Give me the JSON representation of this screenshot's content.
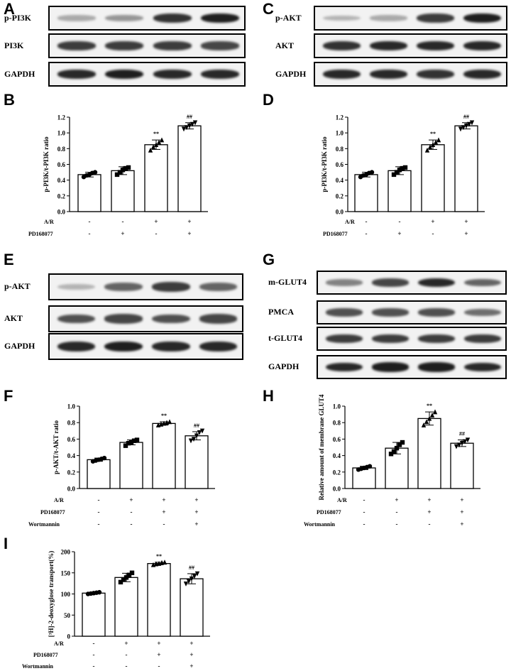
{
  "panel_labels": [
    "A",
    "B",
    "C",
    "D",
    "E",
    "F",
    "G",
    "H",
    "I"
  ],
  "blots": [
    {
      "panel": "A",
      "rows": [
        {
          "label": "p-PI3K",
          "intensity": [
            0.25,
            0.35,
            0.85,
            0.95
          ]
        },
        {
          "label": "PI3K",
          "intensity": [
            0.8,
            0.8,
            0.8,
            0.75
          ]
        },
        {
          "label": "GAPDH",
          "intensity": [
            0.9,
            0.95,
            0.9,
            0.9
          ]
        }
      ]
    },
    {
      "panel": "C",
      "rows": [
        {
          "label": "p-AKT",
          "intensity": [
            0.2,
            0.25,
            0.8,
            0.95
          ]
        },
        {
          "label": "AKT",
          "intensity": [
            0.85,
            0.9,
            0.9,
            0.9
          ]
        },
        {
          "label": "GAPDH",
          "intensity": [
            0.9,
            0.9,
            0.85,
            0.9
          ]
        }
      ]
    },
    {
      "panel": "E",
      "rows": [
        {
          "label": "p-AKT",
          "intensity": [
            0.2,
            0.6,
            0.8,
            0.6
          ]
        },
        {
          "label": "AKT",
          "intensity": [
            0.7,
            0.75,
            0.7,
            0.75
          ]
        },
        {
          "label": "GAPDH",
          "intensity": [
            0.9,
            0.95,
            0.9,
            0.9
          ]
        }
      ]
    },
    {
      "panel": "G",
      "rows": [
        {
          "label": "m-GLUT4",
          "intensity": [
            0.45,
            0.75,
            0.9,
            0.6
          ]
        },
        {
          "label": "PMCA",
          "intensity": [
            0.7,
            0.7,
            0.7,
            0.55
          ]
        },
        {
          "label": "t-GLUT4",
          "intensity": [
            0.8,
            0.8,
            0.8,
            0.8
          ]
        },
        {
          "label": "GAPDH",
          "intensity": [
            0.9,
            0.95,
            0.95,
            0.9
          ]
        }
      ]
    }
  ],
  "chart_data": [
    {
      "panel": "B",
      "type": "bar",
      "ylabel": "p-PI3K/t-PI3K ratio",
      "yticks": [
        "0.0",
        "0.2",
        "0.4",
        "0.6",
        "0.8",
        "1.0",
        "1.2"
      ],
      "ylim": [
        0,
        1.2
      ],
      "values": [
        0.47,
        0.52,
        0.85,
        1.09
      ],
      "errors": [
        0.03,
        0.05,
        0.06,
        0.04
      ],
      "points": [
        [
          0.44,
          0.46,
          0.47,
          0.49,
          0.5
        ],
        [
          0.47,
          0.5,
          0.53,
          0.55,
          0.56
        ],
        [
          0.78,
          0.82,
          0.85,
          0.88,
          0.91
        ],
        [
          1.05,
          1.07,
          1.09,
          1.11,
          1.13
        ]
      ],
      "markers": [
        "circle",
        "square",
        "triangle",
        "triangle-down"
      ],
      "annotations": [
        "",
        "",
        "**",
        "##"
      ],
      "conditions": [
        {
          "label": "A/R",
          "values": [
            "-",
            "-",
            "+",
            "+"
          ]
        },
        {
          "label": "PD168077",
          "values": [
            "-",
            "+",
            "-",
            "+"
          ]
        }
      ]
    },
    {
      "panel": "D",
      "type": "bar",
      "ylabel": "p-PI3K/t-PI3K ratio",
      "yticks": [
        "0.0",
        "0.2",
        "0.4",
        "0.6",
        "0.8",
        "1.0",
        "1.2"
      ],
      "ylim": [
        0,
        1.2
      ],
      "values": [
        0.47,
        0.52,
        0.85,
        1.09
      ],
      "errors": [
        0.03,
        0.05,
        0.06,
        0.04
      ],
      "points": [
        [
          0.44,
          0.46,
          0.47,
          0.49,
          0.5
        ],
        [
          0.47,
          0.5,
          0.53,
          0.55,
          0.56
        ],
        [
          0.78,
          0.82,
          0.85,
          0.88,
          0.91
        ],
        [
          1.05,
          1.07,
          1.09,
          1.11,
          1.13
        ]
      ],
      "markers": [
        "circle",
        "square",
        "triangle",
        "triangle-down"
      ],
      "annotations": [
        "",
        "",
        "**",
        "##"
      ],
      "conditions": [
        {
          "label": "A/R",
          "values": [
            "-",
            "-",
            "+",
            "+"
          ]
        },
        {
          "label": "PD168077",
          "values": [
            "-",
            "+",
            "-",
            "+"
          ]
        }
      ]
    },
    {
      "panel": "F",
      "type": "bar",
      "ylabel": "p-AKT/t-AKT ratio",
      "yticks": [
        "0.0",
        "0.2",
        "0.4",
        "0.6",
        "0.8",
        "1.0"
      ],
      "ylim": [
        0,
        1.0
      ],
      "values": [
        0.35,
        0.56,
        0.79,
        0.64
      ],
      "errors": [
        0.02,
        0.03,
        0.02,
        0.05
      ],
      "points": [
        [
          0.33,
          0.34,
          0.35,
          0.36,
          0.37
        ],
        [
          0.52,
          0.55,
          0.56,
          0.58,
          0.59
        ],
        [
          0.77,
          0.78,
          0.79,
          0.8,
          0.81
        ],
        [
          0.58,
          0.6,
          0.64,
          0.68,
          0.7
        ]
      ],
      "markers": [
        "circle",
        "square",
        "triangle",
        "triangle-down"
      ],
      "annotations": [
        "",
        "",
        "**",
        "##"
      ],
      "conditions": [
        {
          "label": "A/R",
          "values": [
            "-",
            "+",
            "+",
            "+"
          ]
        },
        {
          "label": "PD168077",
          "values": [
            "-",
            "-",
            "+",
            "+"
          ]
        },
        {
          "label": "Wortmannin",
          "values": [
            "-",
            "-",
            "-",
            "+"
          ]
        }
      ]
    },
    {
      "panel": "H",
      "type": "bar",
      "ylabel": "Relative amount of membrane GLUT4",
      "yticks": [
        "0.0",
        "0.2",
        "0.4",
        "0.6",
        "0.8",
        "1.0"
      ],
      "ylim": [
        0,
        1.0
      ],
      "values": [
        0.25,
        0.49,
        0.85,
        0.55
      ],
      "errors": [
        0.02,
        0.07,
        0.08,
        0.04
      ],
      "points": [
        [
          0.23,
          0.24,
          0.25,
          0.26,
          0.27
        ],
        [
          0.42,
          0.45,
          0.49,
          0.53,
          0.56
        ],
        [
          0.77,
          0.81,
          0.85,
          0.89,
          0.93
        ],
        [
          0.51,
          0.53,
          0.55,
          0.57,
          0.59
        ]
      ],
      "markers": [
        "circle",
        "square",
        "triangle",
        "triangle-down"
      ],
      "annotations": [
        "",
        "",
        "**",
        "##"
      ],
      "conditions": [
        {
          "label": "A/R",
          "values": [
            "-",
            "+",
            "+",
            "+"
          ]
        },
        {
          "label": "PD168077",
          "values": [
            "-",
            "-",
            "+",
            "+"
          ]
        },
        {
          "label": "Wortmannin",
          "values": [
            "-",
            "-",
            "-",
            "+"
          ]
        }
      ]
    },
    {
      "panel": "I",
      "type": "bar",
      "ylabel": "[³H]-2-deoxyglose transport(%)",
      "yticks": [
        "0",
        "50",
        "100",
        "150",
        "200"
      ],
      "ylim": [
        0,
        200
      ],
      "values": [
        102,
        139,
        172,
        136
      ],
      "errors": [
        2,
        10,
        3,
        12
      ],
      "points": [
        [
          100,
          101,
          102,
          103,
          104
        ],
        [
          128,
          134,
          139,
          145,
          150
        ],
        [
          169,
          171,
          172,
          174,
          175
        ],
        [
          124,
          130,
          136,
          142,
          148
        ]
      ],
      "markers": [
        "circle",
        "square",
        "triangle",
        "triangle-down"
      ],
      "annotations": [
        "",
        "",
        "**",
        "##"
      ],
      "conditions": [
        {
          "label": "A/R",
          "values": [
            "-",
            "+",
            "+",
            "+"
          ]
        },
        {
          "label": "PD168077",
          "values": [
            "-",
            "-",
            "+",
            "+"
          ]
        },
        {
          "label": "Wortmannin",
          "values": [
            "-",
            "-",
            "-",
            "+"
          ]
        }
      ]
    }
  ]
}
